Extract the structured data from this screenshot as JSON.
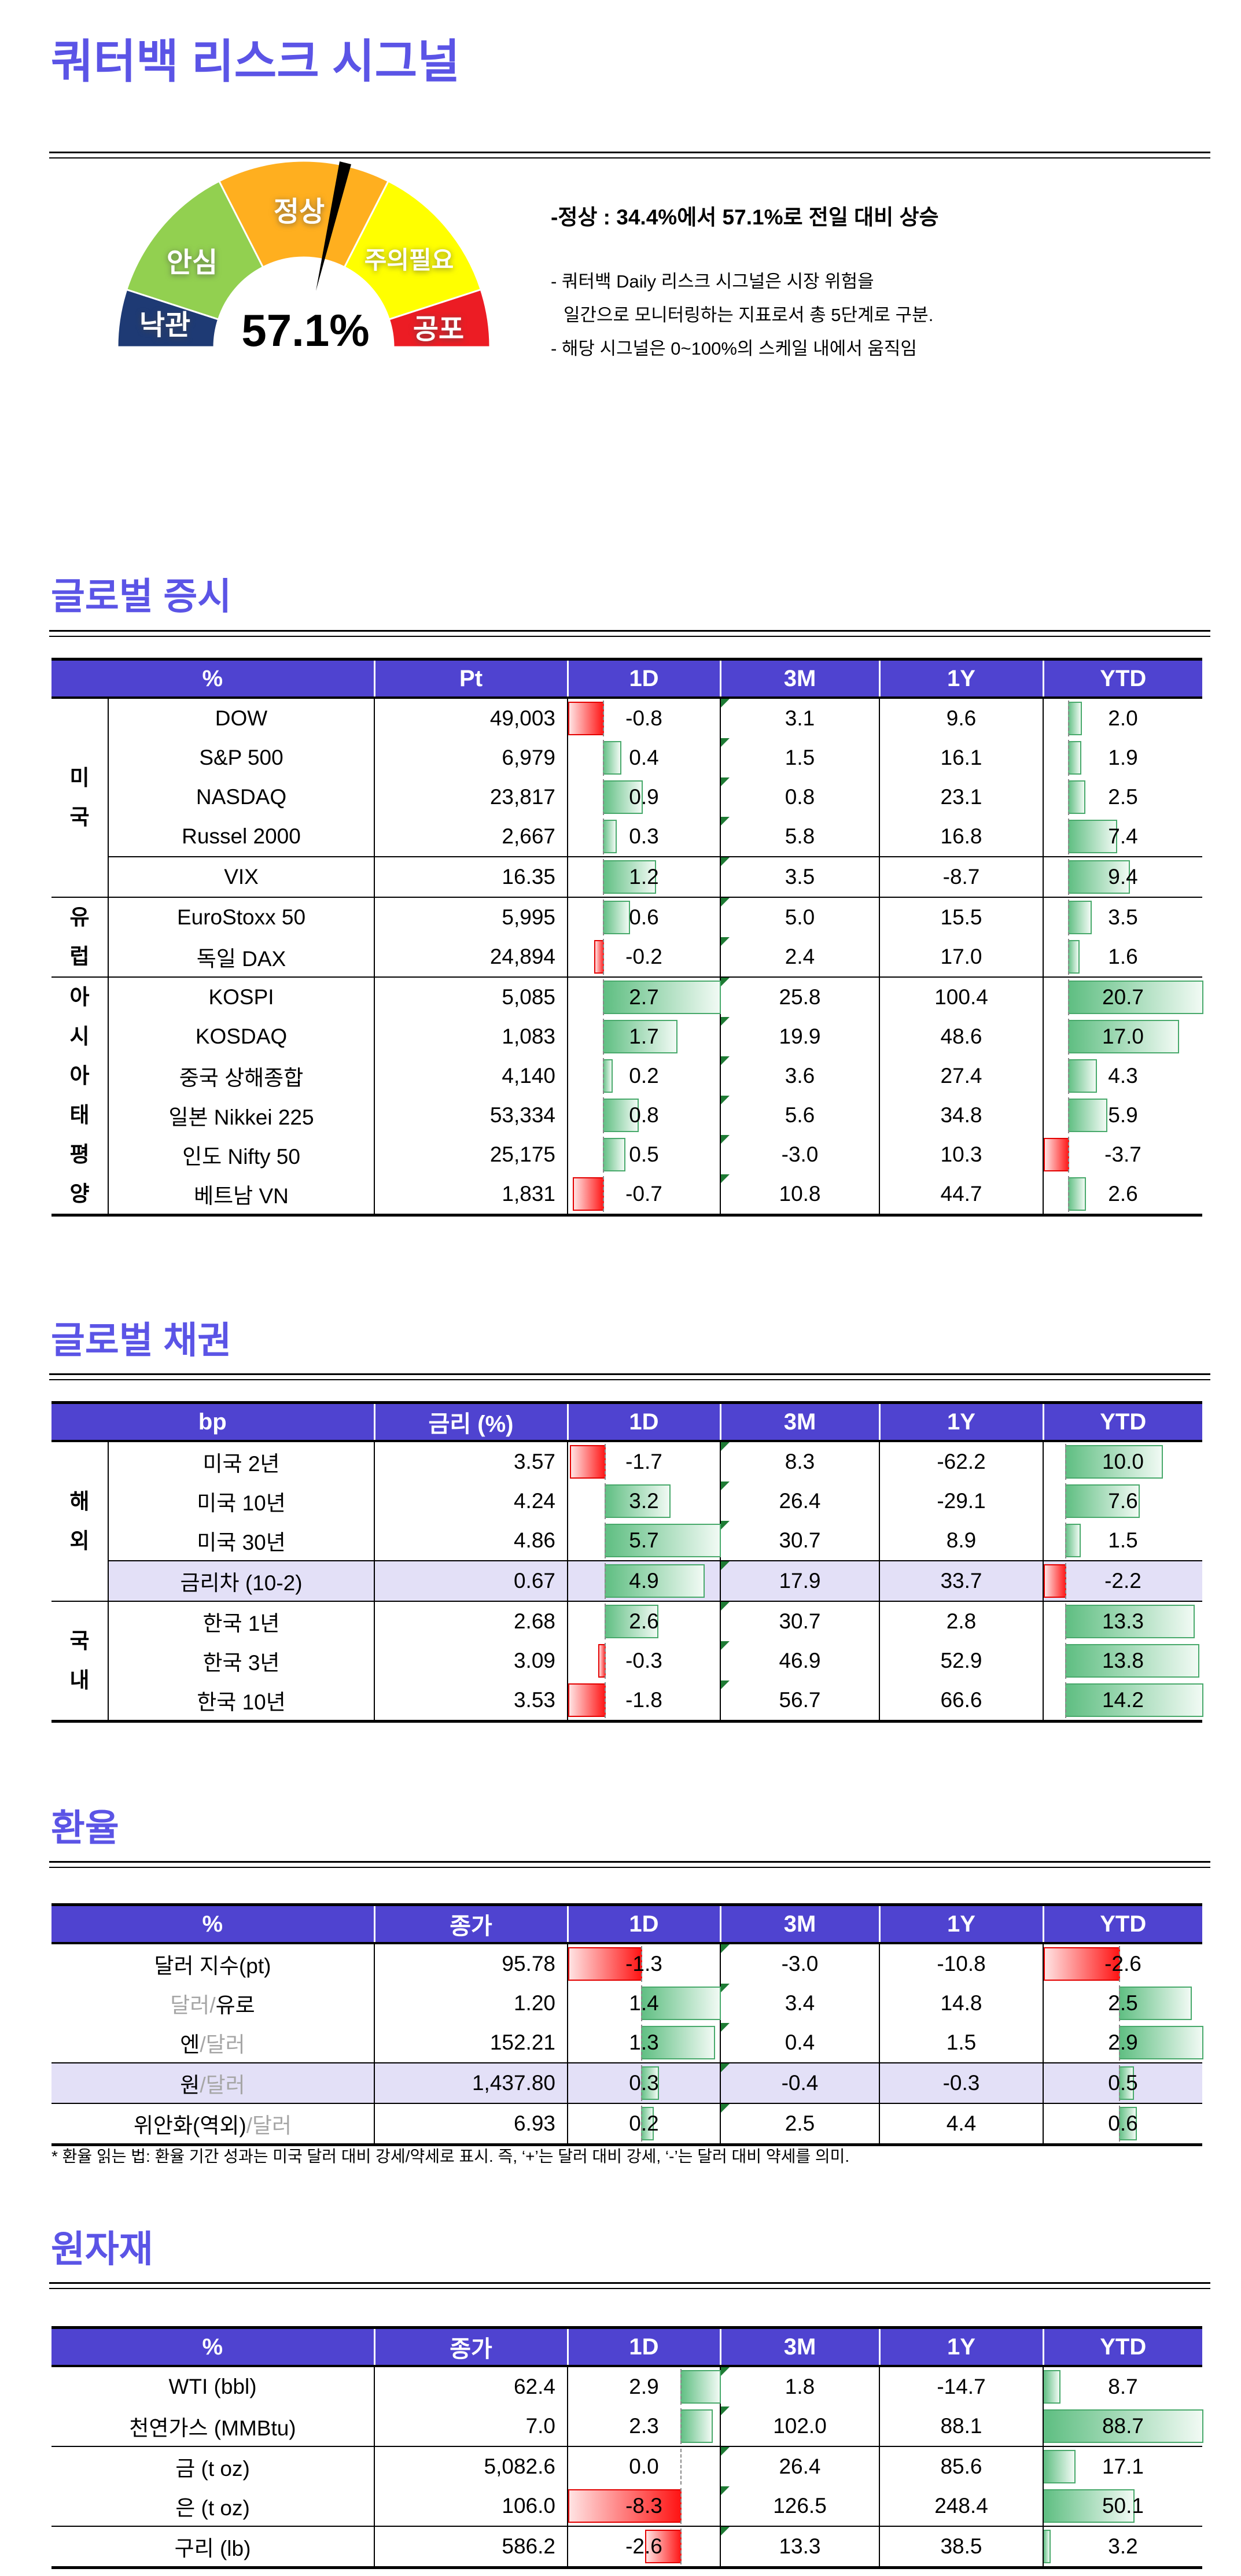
{
  "risk_notes": {
    "headline": "-정상 : 34.4%에서 57.1%로 전일 대비 상승",
    "lines": [
      "- 쿼터백 Daily 리스크 시그널은 시장 위험을",
      "일간으로 모니터링하는 지표로서 총 5단계로 구분.",
      "- 해당 시그널은 0~100%의 스케일 내에서 움직임"
    ]
  },
  "fx_footnote": "* 환율 읽는 법: 환율 기간 성과는 미국 달러 대비 강세/약세로 표시. 즉, ‘+’는 달러 대비 강세, ‘-’는 달러 대비 약세를 의미.",
  "colors": {
    "title_purple": "#5B54E6",
    "header_purple": "#4F43D0",
    "highlight_row": "#E3E0F7",
    "bar_green": "#5EBE81",
    "bar_red": "#FF1212",
    "gauge_navy": "#1E3A74",
    "gauge_green": "#92D050",
    "gauge_orange": "#FFAF1F",
    "gauge_yellow": "#FFFF00",
    "gauge_red": "#EC1C24"
  },
  "chart_data": [
    {
      "type": "gauge",
      "title": "쿼터백 리스크 시그널",
      "value": 57.1,
      "value_label": "57.1%",
      "range": [
        0,
        100
      ],
      "segments": [
        {
          "label": "낙관",
          "from": 0,
          "to": 10,
          "color": "#1E3A74"
        },
        {
          "label": "안심",
          "from": 10,
          "to": 35,
          "color": "#92D050"
        },
        {
          "label": "정상",
          "from": 35,
          "to": 65,
          "color": "#FFAF1F"
        },
        {
          "label": "주의필요",
          "from": 65,
          "to": 90,
          "color": "#FFFF00"
        },
        {
          "label": "공포",
          "from": 90,
          "to": 100,
          "color": "#EC1C24"
        }
      ]
    },
    {
      "type": "table",
      "id": "global-equity",
      "title": "글로벌 증시",
      "unit_header": "%",
      "value_header": "Pt",
      "perf_headers": [
        "1D",
        "3M",
        "1Y",
        "YTD"
      ],
      "has_group_col": true,
      "groups": [
        {
          "label": "미국",
          "rows": [
            {
              "name": "DOW",
              "value": "49,003",
              "perf": [
                -0.8,
                3.1,
                9.6,
                2.0
              ]
            },
            {
              "name": "S&P 500",
              "value": "6,979",
              "perf": [
                0.4,
                1.5,
                16.1,
                1.9
              ]
            },
            {
              "name": "NASDAQ",
              "value": "23,817",
              "perf": [
                0.9,
                0.8,
                23.1,
                2.5
              ]
            },
            {
              "name": "Russel 2000",
              "value": "2,667",
              "perf": [
                0.3,
                5.8,
                16.8,
                7.4
              ]
            },
            {
              "name": "VIX",
              "value": "16.35",
              "perf": [
                1.2,
                3.5,
                -8.7,
                9.4
              ],
              "sep_above": "name"
            }
          ]
        },
        {
          "label": "유럽",
          "rows": [
            {
              "name": "EuroStoxx 50",
              "value": "5,995",
              "perf": [
                0.6,
                5.0,
                15.5,
                3.5
              ]
            },
            {
              "name": "독일 DAX",
              "value": "24,894",
              "perf": [
                -0.2,
                2.4,
                17.0,
                1.6
              ]
            }
          ]
        },
        {
          "label": "아시아태평양",
          "rows": [
            {
              "name": "KOSPI",
              "value": "5,085",
              "perf": [
                2.7,
                25.8,
                100.4,
                20.7
              ]
            },
            {
              "name": "KOSDAQ",
              "value": "1,083",
              "perf": [
                1.7,
                19.9,
                48.6,
                17.0
              ]
            },
            {
              "name": "중국 상해종합",
              "value": "4,140",
              "perf": [
                0.2,
                3.6,
                27.4,
                4.3
              ]
            },
            {
              "name": "일본 Nikkei 225",
              "value": "53,334",
              "perf": [
                0.8,
                5.6,
                34.8,
                5.9
              ]
            },
            {
              "name": "인도 Nifty 50",
              "value": "25,175",
              "perf": [
                0.5,
                -3.0,
                10.3,
                -3.7
              ]
            },
            {
              "name": "베트남 VN",
              "value": "1,831",
              "perf": [
                -0.7,
                10.8,
                44.7,
                2.6
              ]
            }
          ]
        }
      ]
    },
    {
      "type": "table",
      "id": "global-bond",
      "title": "글로벌 채권",
      "unit_header": "bp",
      "value_header": "금리 (%)",
      "perf_headers": [
        "1D",
        "3M",
        "1Y",
        "YTD"
      ],
      "has_group_col": true,
      "groups": [
        {
          "label": "해외",
          "rows": [
            {
              "name": "미국 2년",
              "value": "3.57",
              "perf": [
                -1.7,
                8.3,
                -62.2,
                10.0
              ]
            },
            {
              "name": "미국 10년",
              "value": "4.24",
              "perf": [
                3.2,
                26.4,
                -29.1,
                7.6
              ]
            },
            {
              "name": "미국 30년",
              "value": "4.86",
              "perf": [
                5.7,
                30.7,
                8.9,
                1.5
              ]
            },
            {
              "name": "금리차 (10-2)",
              "value": "0.67",
              "perf": [
                4.9,
                17.9,
                33.7,
                -2.2
              ],
              "highlight": true,
              "sep_above": "name"
            }
          ]
        },
        {
          "label": "국내",
          "rows": [
            {
              "name": "한국 1년",
              "value": "2.68",
              "perf": [
                2.6,
                30.7,
                2.8,
                13.3
              ]
            },
            {
              "name": "한국 3년",
              "value": "3.09",
              "perf": [
                -0.3,
                46.9,
                52.9,
                13.8
              ]
            },
            {
              "name": "한국 10년",
              "value": "3.53",
              "perf": [
                -1.8,
                56.7,
                66.6,
                14.2
              ]
            }
          ]
        }
      ]
    },
    {
      "type": "table",
      "id": "fx",
      "title": "환율",
      "unit_header": "%",
      "value_header": "종가",
      "perf_headers": [
        "1D",
        "3M",
        "1Y",
        "YTD"
      ],
      "has_group_col": false,
      "groups": [
        {
          "label": "",
          "rows": [
            {
              "name": "달러 지수(pt)",
              "value": "95.78",
              "perf": [
                -1.3,
                -3.0,
                -10.8,
                -2.6
              ]
            },
            {
              "name": "달러/유로",
              "name_parts": [
                [
                  "달러/",
                  1
                ],
                [
                  "유로",
                  0
                ]
              ],
              "value": "1.20",
              "perf": [
                1.4,
                3.4,
                14.8,
                2.5
              ]
            },
            {
              "name": "엔/달러",
              "name_parts": [
                [
                  "엔",
                  0
                ],
                [
                  "/달러",
                  1
                ]
              ],
              "value": "152.21",
              "perf": [
                1.3,
                0.4,
                1.5,
                2.9
              ]
            },
            {
              "name": "원/달러",
              "name_parts": [
                [
                  "원",
                  0
                ],
                [
                  "/달러",
                  1
                ]
              ],
              "value": "1,437.80",
              "perf": [
                0.3,
                -0.4,
                -0.3,
                0.5
              ],
              "highlight": true,
              "sep_above": "full"
            },
            {
              "name": "위안화(역외)/달러",
              "name_parts": [
                [
                  "위안화(역외)",
                  0
                ],
                [
                  "/달러",
                  1
                ]
              ],
              "value": "6.93",
              "perf": [
                0.2,
                2.5,
                4.4,
                0.6
              ],
              "sep_above": "full"
            }
          ]
        }
      ]
    },
    {
      "type": "table",
      "id": "commodity",
      "title": "원자재",
      "unit_header": "%",
      "value_header": "종가",
      "perf_headers": [
        "1D",
        "3M",
        "1Y",
        "YTD"
      ],
      "has_group_col": false,
      "groups": [
        {
          "label": "",
          "rows": [
            {
              "name": "WTI (bbl)",
              "value": "62.4",
              "perf": [
                2.9,
                1.8,
                -14.7,
                8.7
              ]
            },
            {
              "name": "천연가스 (MMBtu)",
              "value": "7.0",
              "perf": [
                2.3,
                102.0,
                88.1,
                88.7
              ]
            },
            {
              "name": "금 (t oz)",
              "value": "5,082.6",
              "perf": [
                0.0,
                26.4,
                85.6,
                17.1
              ],
              "sep_above": "full"
            },
            {
              "name": "은 (t oz)",
              "value": "106.0",
              "perf": [
                -8.3,
                126.5,
                248.4,
                50.1
              ]
            },
            {
              "name": "구리 (lb)",
              "value": "586.2",
              "perf": [
                -2.6,
                13.3,
                38.5,
                3.2
              ],
              "sep_above": "full"
            }
          ]
        }
      ]
    }
  ]
}
